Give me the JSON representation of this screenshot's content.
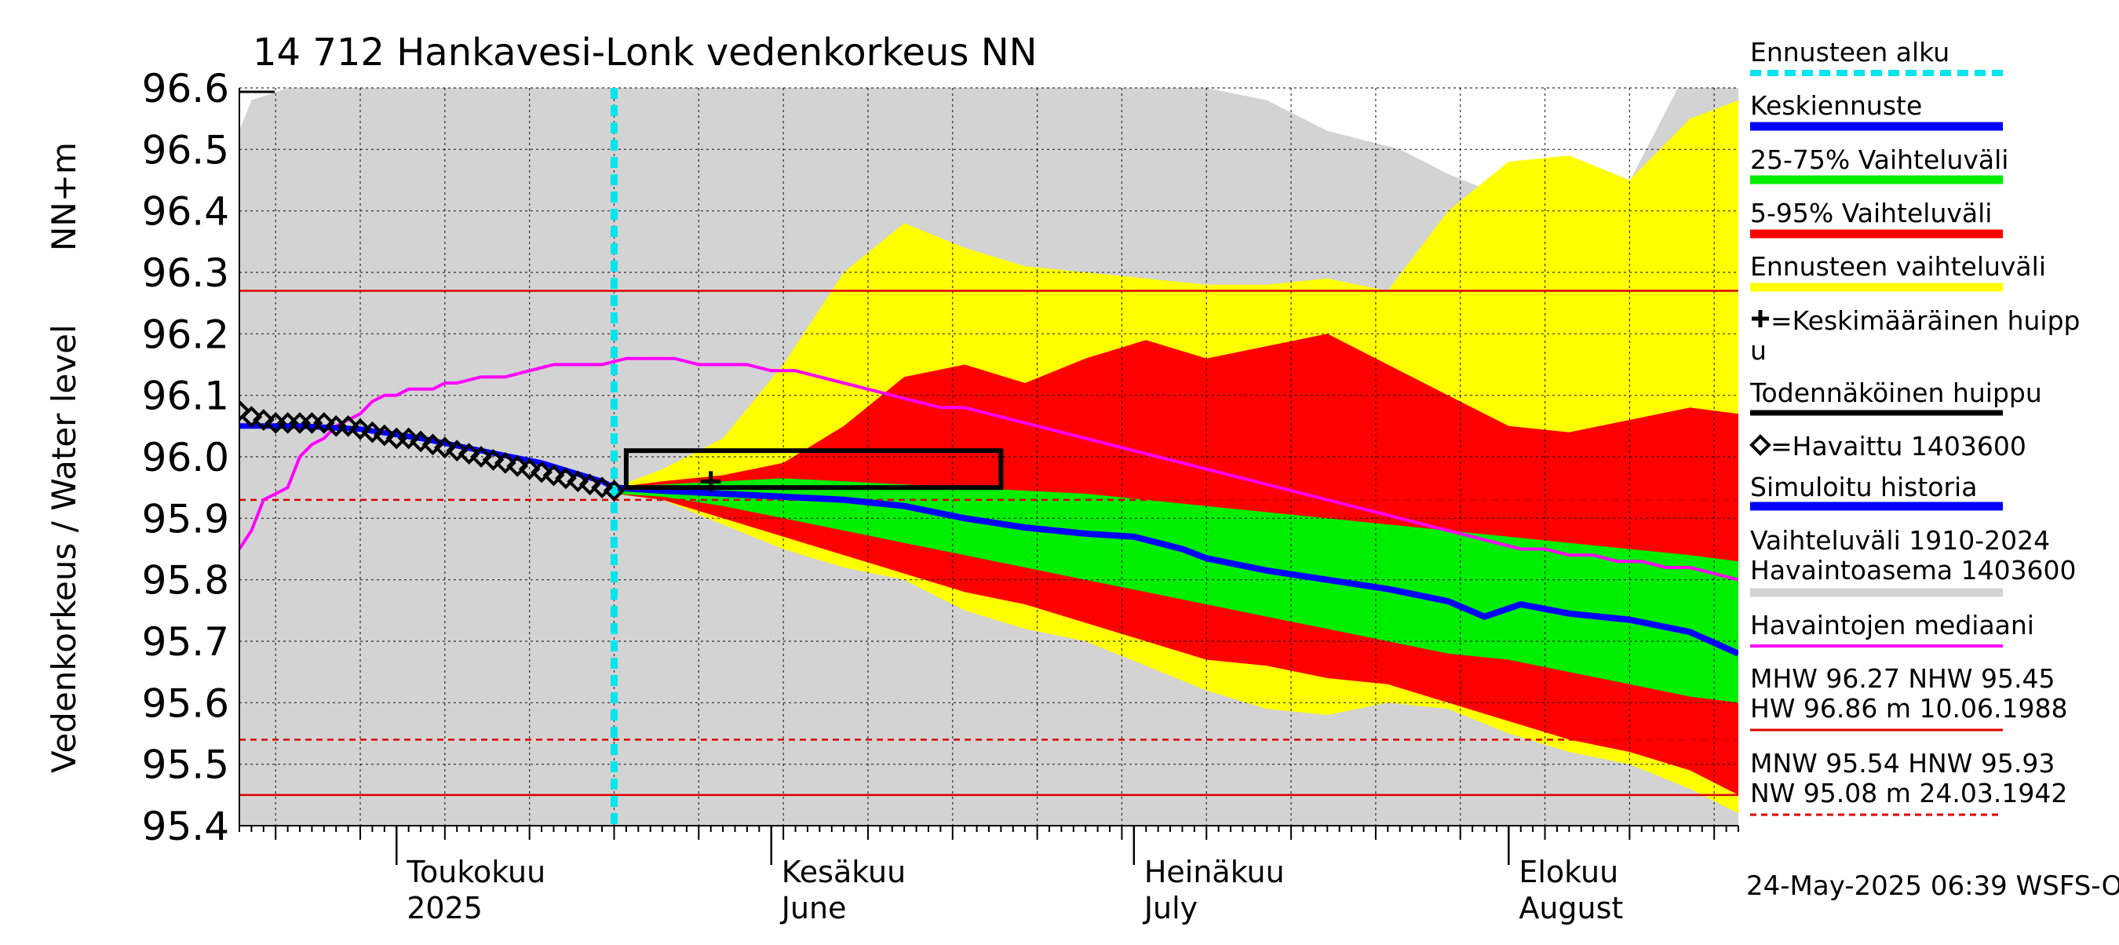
{
  "chart_data": {
    "type": "area",
    "title": "14 712 Hankavesi-Lonk vedenkorkeus NN",
    "ylabel_left": "Vedenkorkeus / Water level",
    "ylabel_right": "NN+m",
    "ylim": [
      95.4,
      96.6
    ],
    "yticks": [
      "96.6",
      "96.5",
      "96.4",
      "96.3",
      "96.2",
      "96.1",
      "96.0",
      "95.9",
      "95.8",
      "95.7",
      "95.6",
      "95.5",
      "95.4"
    ],
    "x_range_days": [
      0,
      124
    ],
    "x_start_date": "2025-04-18",
    "month_labels": [
      {
        "fi": "Toukokuu",
        "en": "2025",
        "day": 13
      },
      {
        "fi": "Kesäkuu",
        "en": "June",
        "day": 44
      },
      {
        "fi": "Heinäkuu",
        "en": "July",
        "day": 74
      },
      {
        "fi": "Elokuu",
        "en": "August",
        "day": 105
      }
    ],
    "forecast_start_day": 31,
    "reference_lines": {
      "MHW": 96.27,
      "HNW": 95.93,
      "MNW": 95.54,
      "NW_line": 95.45
    },
    "history_band_1910_2024": {
      "x": [
        0,
        1,
        4,
        7,
        10,
        14,
        18,
        30,
        60,
        80,
        85,
        90,
        96,
        100,
        105,
        108,
        110,
        112,
        114,
        119,
        120,
        124
      ],
      "upper": [
        96.53,
        96.58,
        96.6,
        96.6,
        96.6,
        96.6,
        96.6,
        96.6,
        96.6,
        96.6,
        96.58,
        96.53,
        96.5,
        96.46,
        96.42,
        96.41,
        96.4,
        96.39,
        96.41,
        96.6,
        96.6,
        96.6
      ],
      "lower": [
        95.4,
        95.4,
        95.4,
        95.4,
        95.4,
        95.4,
        95.4,
        95.4,
        95.4,
        95.4,
        95.4,
        95.4,
        95.4,
        95.4,
        95.4,
        95.4,
        95.4,
        95.4,
        95.4,
        95.4,
        95.4,
        95.4
      ]
    },
    "forecast_range": {
      "x": [
        31,
        35,
        40,
        45,
        50,
        55,
        60,
        65,
        70,
        75,
        80,
        85,
        90,
        95,
        100,
        105,
        110,
        115,
        120,
        124
      ],
      "upper": [
        95.95,
        95.98,
        96.03,
        96.15,
        96.3,
        96.38,
        96.34,
        96.31,
        96.3,
        96.29,
        96.28,
        96.28,
        96.29,
        96.27,
        96.4,
        96.48,
        96.49,
        96.45,
        96.55,
        96.58
      ],
      "lower": [
        95.94,
        95.93,
        95.89,
        95.85,
        95.82,
        95.8,
        95.75,
        95.72,
        95.7,
        95.66,
        95.62,
        95.59,
        95.58,
        95.6,
        95.59,
        95.55,
        95.52,
        95.5,
        95.46,
        95.42
      ]
    },
    "band_5_95": {
      "x": [
        31,
        35,
        40,
        45,
        50,
        55,
        60,
        65,
        70,
        75,
        80,
        85,
        90,
        95,
        100,
        105,
        110,
        115,
        120,
        124
      ],
      "upper": [
        95.95,
        95.96,
        95.97,
        95.99,
        96.05,
        96.13,
        96.15,
        96.12,
        96.16,
        96.19,
        96.16,
        96.18,
        96.2,
        96.15,
        96.1,
        96.05,
        96.04,
        96.06,
        96.08,
        96.07
      ],
      "lower": [
        95.94,
        95.93,
        95.9,
        95.87,
        95.84,
        95.81,
        95.78,
        95.76,
        95.73,
        95.7,
        95.67,
        95.66,
        95.64,
        95.63,
        95.6,
        95.57,
        95.54,
        95.52,
        95.49,
        95.45
      ]
    },
    "band_25_75": {
      "x": [
        31,
        35,
        40,
        45,
        50,
        55,
        60,
        65,
        70,
        75,
        80,
        85,
        90,
        95,
        100,
        105,
        110,
        115,
        120,
        124
      ],
      "upper": [
        95.95,
        95.955,
        95.96,
        95.965,
        95.96,
        95.955,
        95.95,
        95.945,
        95.94,
        95.93,
        95.92,
        95.91,
        95.9,
        95.89,
        95.88,
        95.87,
        95.86,
        95.85,
        95.84,
        95.83
      ],
      "lower": [
        95.94,
        95.935,
        95.92,
        95.9,
        95.88,
        95.86,
        95.84,
        95.82,
        95.8,
        95.78,
        95.76,
        95.74,
        95.72,
        95.7,
        95.68,
        95.67,
        95.65,
        95.63,
        95.61,
        95.6
      ]
    },
    "median_forecast": {
      "x": [
        31,
        35,
        40,
        45,
        50,
        55,
        60,
        65,
        70,
        74,
        78,
        80,
        85,
        90,
        95,
        100,
        103,
        106,
        110,
        115,
        120,
        124
      ],
      "y": [
        95.95,
        95.945,
        95.94,
        95.935,
        95.93,
        95.92,
        95.9,
        95.885,
        95.875,
        95.87,
        95.85,
        95.835,
        95.815,
        95.8,
        95.785,
        95.765,
        95.74,
        95.76,
        95.745,
        95.735,
        95.715,
        95.68
      ]
    },
    "simulated_history": {
      "x": [
        0,
        5,
        10,
        15,
        20,
        25,
        30,
        31
      ],
      "y": [
        96.05,
        96.05,
        96.045,
        96.03,
        96.01,
        95.99,
        95.96,
        95.95
      ]
    },
    "observed_median": {
      "x": [
        0,
        1,
        2,
        3,
        4,
        5,
        6,
        7,
        8,
        9,
        10,
        11,
        12,
        13,
        14,
        15,
        16,
        17,
        18,
        20,
        22,
        24,
        26,
        28,
        30,
        32,
        34,
        36,
        38,
        40,
        42,
        44,
        46,
        48,
        50,
        52,
        54,
        56,
        58,
        60,
        62,
        64,
        66,
        68,
        70,
        72,
        74,
        76,
        78,
        80,
        82,
        84,
        86,
        88,
        90,
        92,
        94,
        96,
        98,
        100,
        102,
        104,
        106,
        108,
        110,
        112,
        114,
        116,
        118,
        120,
        122,
        124
      ],
      "y": [
        95.85,
        95.88,
        95.93,
        95.94,
        95.95,
        96.0,
        96.02,
        96.03,
        96.05,
        96.06,
        96.07,
        96.09,
        96.1,
        96.1,
        96.11,
        96.11,
        96.11,
        96.12,
        96.12,
        96.13,
        96.13,
        96.14,
        96.15,
        96.15,
        96.15,
        96.16,
        96.16,
        96.16,
        96.15,
        96.15,
        96.15,
        96.14,
        96.14,
        96.13,
        96.12,
        96.11,
        96.1,
        96.09,
        96.08,
        96.08,
        96.07,
        96.06,
        96.05,
        96.04,
        96.03,
        96.02,
        96.01,
        96.0,
        95.99,
        95.98,
        95.97,
        95.96,
        95.95,
        95.94,
        95.93,
        95.92,
        95.91,
        95.9,
        95.89,
        95.88,
        95.87,
        95.86,
        95.85,
        95.85,
        95.84,
        95.84,
        95.83,
        95.83,
        95.82,
        95.82,
        95.81,
        95.8
      ]
    },
    "observed": {
      "x": [
        0,
        1,
        2,
        3,
        4,
        5,
        6,
        7,
        8,
        9,
        10,
        11,
        12,
        13,
        14,
        15,
        16,
        17,
        18,
        19,
        20,
        21,
        22,
        23,
        24,
        25,
        26,
        27,
        28,
        29,
        30,
        31
      ],
      "y": [
        96.075,
        96.065,
        96.06,
        96.055,
        96.055,
        96.055,
        96.055,
        96.055,
        96.05,
        96.05,
        96.045,
        96.04,
        96.035,
        96.03,
        96.03,
        96.025,
        96.02,
        96.015,
        96.01,
        96.005,
        96.0,
        95.995,
        95.99,
        95.985,
        95.98,
        95.975,
        95.97,
        95.965,
        95.96,
        95.955,
        95.95,
        95.945
      ]
    },
    "probable_peak_box": {
      "x0": 32,
      "x1": 63,
      "y0": 95.95,
      "y1": 96.01
    },
    "mean_peak_marker": {
      "x": 39,
      "y": 95.96
    },
    "legend": {
      "forecast_start": "Ennusteen alku",
      "median_forecast": "Keskiennuste",
      "band_25_75": "25-75% Vaihteluväli",
      "band_5_95": "5-95% Vaihteluväli",
      "forecast_range": "Ennusteen vaihteluväli",
      "mean_peak_line1": "=Keskimääräinen huipp",
      "mean_peak_line2": "u",
      "probable_peak": "Todennäköinen huippu",
      "observed": "=Havaittu 1403600",
      "simulated": "Simuloitu historia",
      "history_line1": "Vaihteluväli 1910-2024",
      "history_line2": " Havaintoasema 1403600",
      "observed_median": "Havaintojen mediaani",
      "stats_1": "MHW  96.27 NHW  95.45",
      "stats_2": "HW  96.86 m 10.06.1988",
      "stats_3": "MNW  95.54 HNW  95.93",
      "stats_4": "NW  95.08 m 24.03.1942"
    },
    "footer": "24-May-2025 06:39 WSFS-O",
    "colors": {
      "history": "#d3d3d3",
      "forecast_range": "#ffff00",
      "band_5_95": "#ff0000",
      "band_25_75": "#00ee00",
      "median": "#0000ff",
      "simulated": "#0000ff",
      "observed_median": "#ff00ff",
      "forecast_start": "#00e5ee",
      "ref_line": "#dd0000",
      "peak_box": "#000000"
    }
  }
}
